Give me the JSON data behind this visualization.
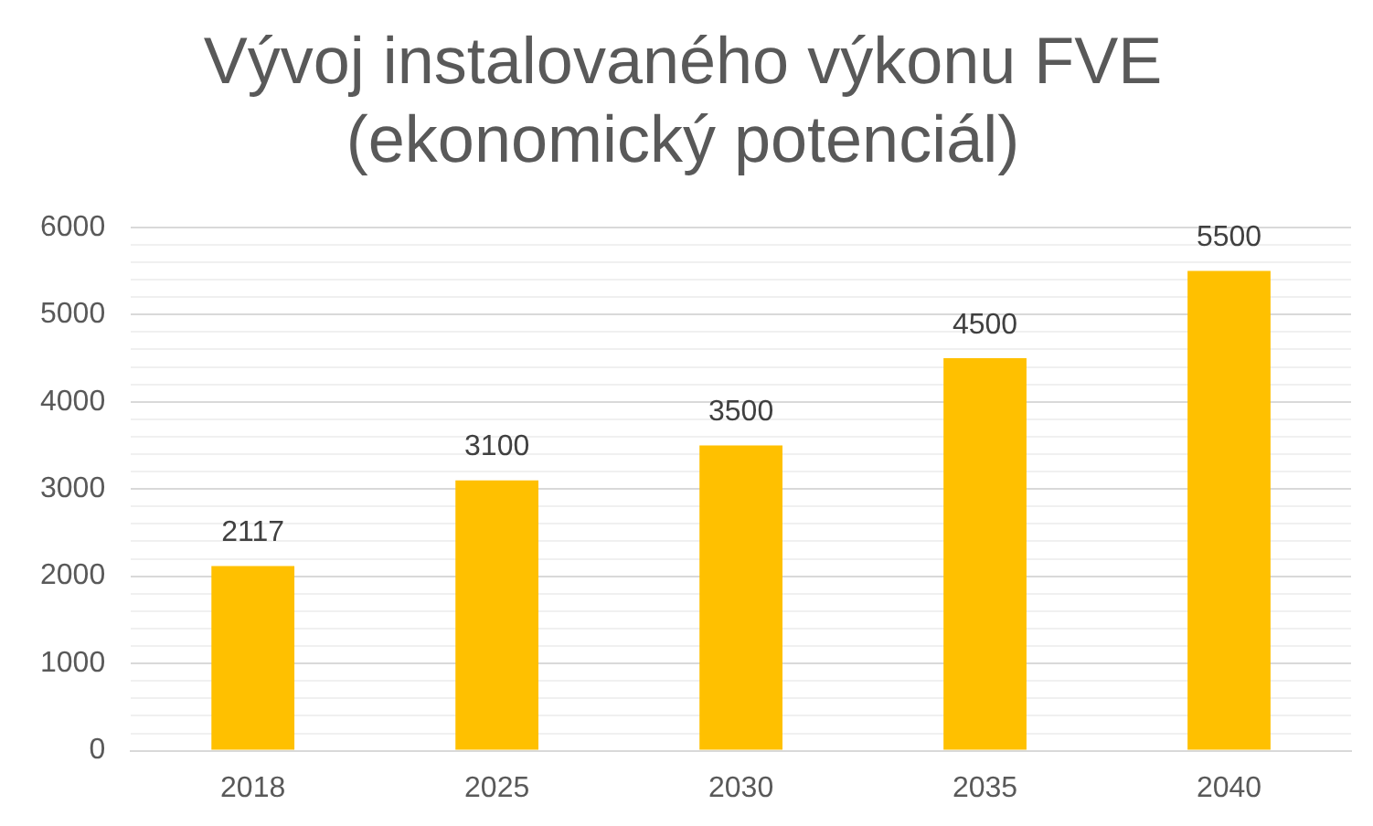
{
  "chart_data": {
    "type": "bar",
    "title": "Vývoj instalovaného výkonu FVE\n(ekonomický potenciál)",
    "categories": [
      "2018",
      "2025",
      "2030",
      "2035",
      "2040"
    ],
    "values": [
      2117,
      3100,
      3500,
      4500,
      5500
    ],
    "color": "#ffc000",
    "data_labels": true,
    "ylim": [
      0,
      6000
    ],
    "yticks": [
      0,
      {
        "value": 200,
        "label": null
      },
      {
        "value": 400,
        "label": null
      },
      {
        "value": 600,
        "label": null
      },
      {
        "value": 800,
        "label": null
      },
      1000,
      {
        "value": 1200,
        "label": null
      },
      {
        "value": 1400,
        "label": null
      },
      {
        "value": 1600,
        "label": null
      },
      {
        "value": 1800,
        "label": null
      },
      2000,
      {
        "value": 2200,
        "label": null
      },
      {
        "value": 2400,
        "label": null
      },
      {
        "value": 2600,
        "label": null
      },
      {
        "value": 2800,
        "label": null
      },
      3000,
      {
        "value": 3200,
        "label": null
      },
      {
        "value": 3400,
        "label": null
      },
      {
        "value": 3600,
        "label": null
      },
      {
        "value": 3800,
        "label": null
      },
      4000,
      {
        "value": 4200,
        "label": null
      },
      {
        "value": 4400,
        "label": null
      },
      {
        "value": 4600,
        "label": null
      },
      {
        "value": 4800,
        "label": null
      },
      5000,
      {
        "value": 5200,
        "label": null
      },
      {
        "value": 5400,
        "label": null
      },
      {
        "value": 5600,
        "label": null
      },
      {
        "value": 5800,
        "label": null
      },
      6000
    ],
    "grid": "y",
    "legend": false
  }
}
